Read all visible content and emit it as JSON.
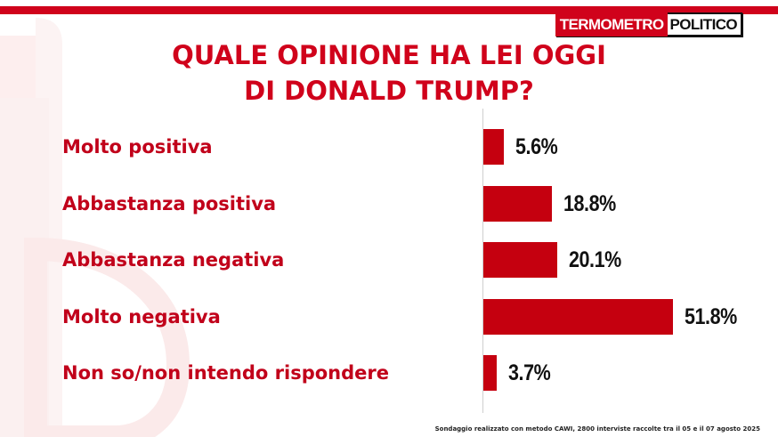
{
  "header": {
    "logo_part1": "TERMOMETRO",
    "logo_part2": "POLITICO",
    "brand_color": "#d0021b"
  },
  "footnote": "Sondaggio realizzato con metodo CAWI, 2800 interviste raccolte tra il 05 e il 07 agosto 2025",
  "chart_data": {
    "type": "bar",
    "orientation": "horizontal",
    "title_lines": [
      "QUALE OPINIONE HA LEI OGGI",
      "DI DONALD TRUMP?"
    ],
    "categories": [
      "Molto positiva",
      "Abbastanza positiva",
      "Abbastanza negativa",
      "Molto negativa",
      "Non so/non intendo rispondere"
    ],
    "values": [
      5.6,
      18.8,
      20.1,
      51.8,
      3.7
    ],
    "value_labels": [
      "5.6%",
      "18.8%",
      "20.1%",
      "51.8%",
      "3.7%"
    ],
    "unit": "%",
    "bar_color": "#c5000f",
    "label_color": "#c1001a",
    "grid": false,
    "legend": "none"
  }
}
